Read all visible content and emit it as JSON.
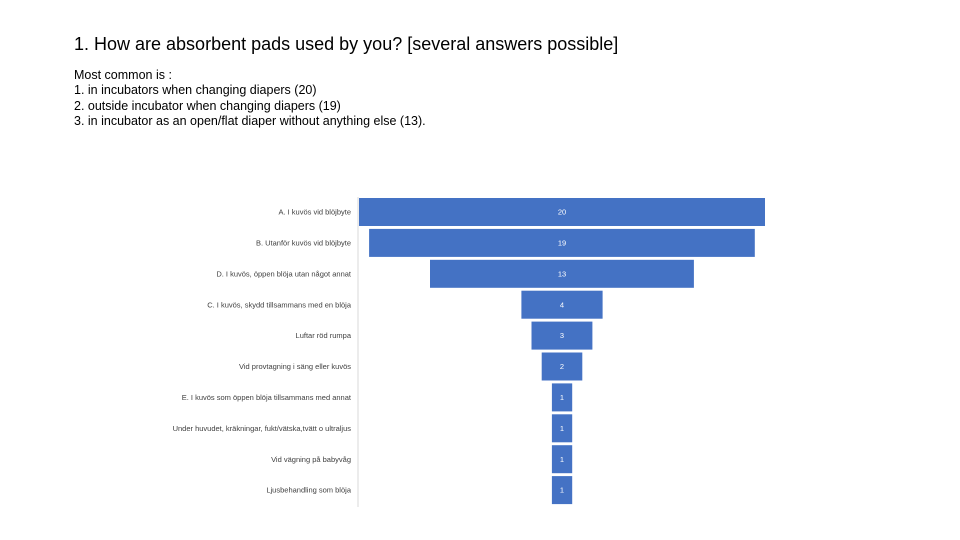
{
  "slide": {
    "title": "1. How are absorbent pads used by you? [several answers possible]",
    "summary": [
      "Most common is :",
      "1. in incubators when changing diapers (20)",
      "2. outside incubator when changing diapers (19)",
      "3. in incubator as an open/flat diaper without anything else (13)."
    ]
  },
  "chart_data": {
    "type": "bar",
    "orientation": "horizontal-funnel",
    "categories": [
      "A. I kuvös vid blöjbyte",
      "B. Utanför kuvös vid blöjbyte",
      "D. I kuvös, öppen blöja utan något annat",
      "C. I kuvös, skydd tillsammans med en blöja",
      "Luftar röd rumpa",
      "Vid provtagning i säng eller kuvös",
      "E. I kuvös som öppen blöja tillsammans med annat",
      "Under huvudet, kräkningar, fukt/vätska,tvätt o ultraljus",
      "Vid vägning på babyvåg",
      "Ljusbehandling som blöja"
    ],
    "values": [
      20,
      19,
      13,
      4,
      3,
      2,
      1,
      1,
      1,
      1
    ],
    "bar_color": "#4472C4",
    "value_label_color": "#FFFFFF",
    "category_label_color": "#404040"
  }
}
